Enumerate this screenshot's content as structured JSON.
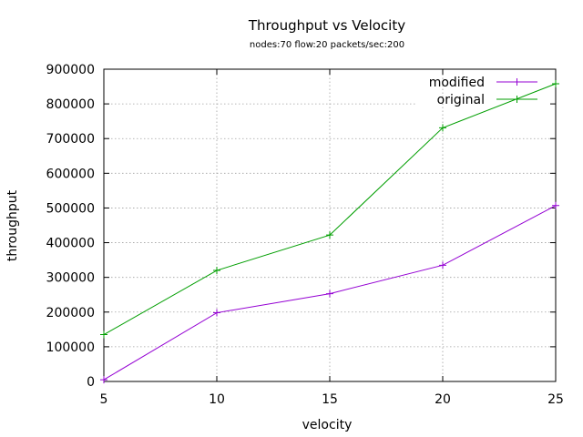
{
  "chart_data": {
    "type": "line",
    "title": "Throughput vs Velocity",
    "subtitle": "nodes:70  flow:20  packets/sec:200",
    "xlabel": "velocity",
    "ylabel": "throughput",
    "xlim": [
      5,
      25
    ],
    "ylim": [
      0,
      900000
    ],
    "xticks": [
      5,
      10,
      15,
      20,
      25
    ],
    "yticks": [
      0,
      100000,
      200000,
      300000,
      400000,
      500000,
      600000,
      700000,
      800000,
      900000
    ],
    "grid": true,
    "legend_position": "top-right",
    "x": [
      5,
      10,
      15,
      20,
      25
    ],
    "series": [
      {
        "name": "modified",
        "color": "#9400d3",
        "values": [
          5000,
          198000,
          253000,
          335000,
          507000
        ]
      },
      {
        "name": "original",
        "color": "#009e00",
        "values": [
          135000,
          320000,
          422000,
          731000,
          858000
        ]
      }
    ]
  }
}
